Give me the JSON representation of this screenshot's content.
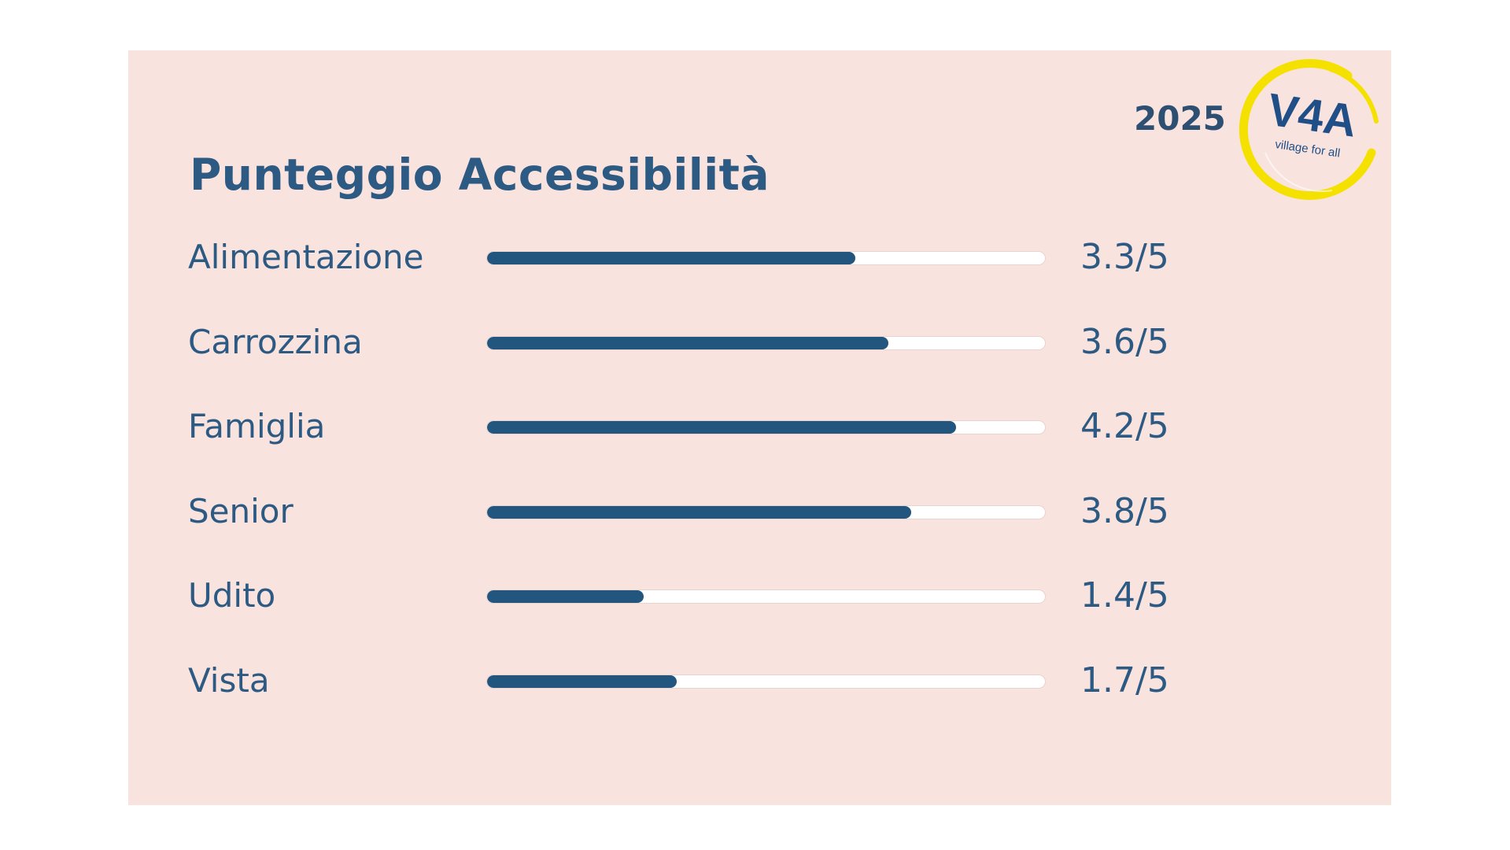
{
  "card": {
    "title": "Punteggio Accessibilità",
    "year": "2025",
    "logo": {
      "text": "V4A",
      "subtext": "village for all"
    }
  },
  "colors": {
    "background": "#f9e3df",
    "bar_fill": "#23567f",
    "bar_track": "#ffffff",
    "text": "#2d5a82",
    "logo_ring": "#f4e100"
  },
  "chart_data": {
    "type": "bar",
    "orientation": "horizontal",
    "title": "Punteggio Accessibilità",
    "categories": [
      "Alimentazione",
      "Carrozzina",
      "Famiglia",
      "Senior",
      "Udito",
      "Vista"
    ],
    "values": [
      3.3,
      3.6,
      4.2,
      3.8,
      1.4,
      1.7
    ],
    "max": 5,
    "value_labels": [
      "3.3/5",
      "3.6/5",
      "4.2/5",
      "3.8/5",
      "1.4/5",
      "1.7/5"
    ],
    "grid": false,
    "legend": "none"
  }
}
